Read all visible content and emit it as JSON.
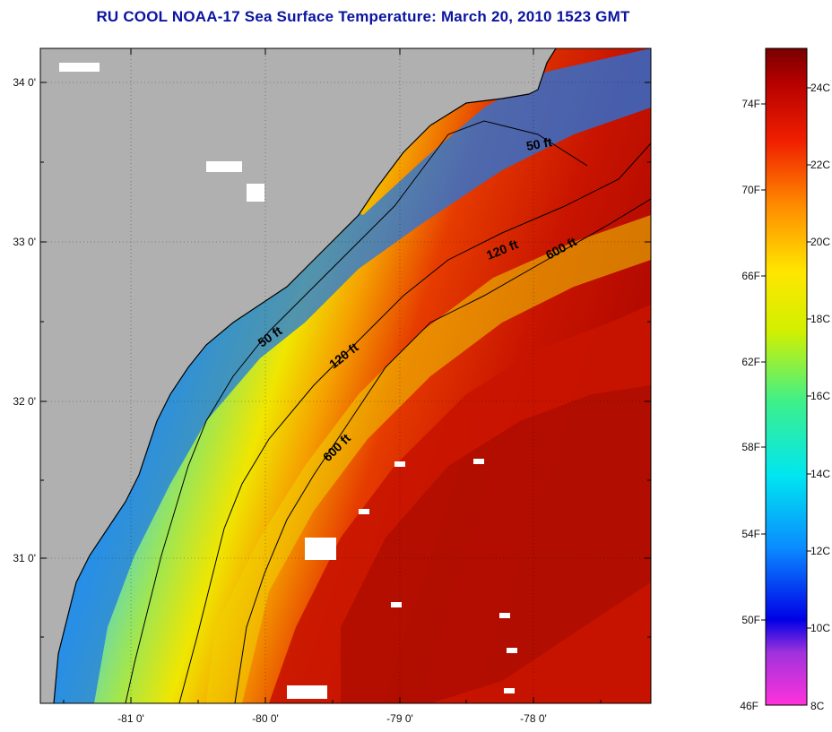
{
  "title": "RU COOL  NOAA-17  Sea Surface Temperature:  March 20, 2010 1523 GMT",
  "latitude_labels": [
    "34 0'",
    "33 0'",
    "32 0'",
    "31 0'"
  ],
  "longitude_labels": [
    "-81 0'",
    "-80 0'",
    "-79 0'",
    "-78 0'"
  ],
  "contours": {
    "shallow": "50 ft",
    "mid": "120 ft",
    "deep": "600 ft"
  },
  "colorbar": {
    "fahrenheit_labels": [
      "74F",
      "70F",
      "66F",
      "62F",
      "58F",
      "54F",
      "50F",
      "46F"
    ],
    "celsius_labels": [
      "24C",
      "22C",
      "20C",
      "18C",
      "16C",
      "14C",
      "12C",
      "10C",
      "8C"
    ],
    "range_c": [
      8,
      25
    ]
  },
  "colors": {
    "land": "#b0b0b0",
    "cold": "#1e64e6",
    "cool": "#28c8f0",
    "warm": "#f0e600",
    "hot": "#d21400",
    "title": "#0a14a0"
  }
}
